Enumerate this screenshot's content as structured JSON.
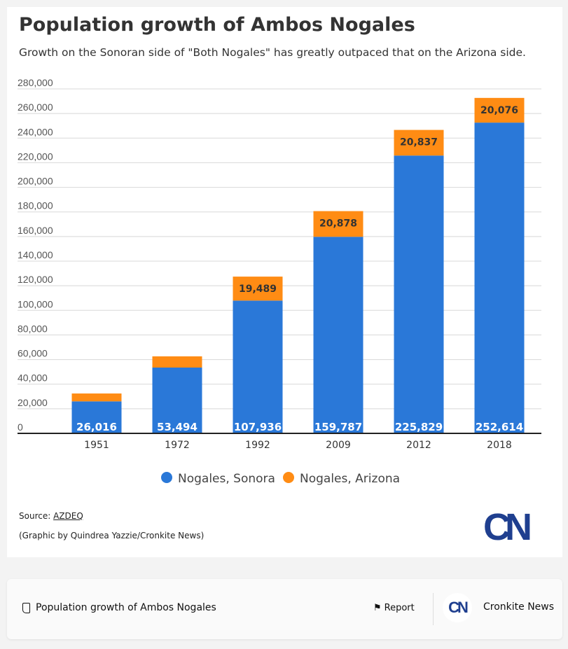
{
  "chart_data": {
    "type": "bar",
    "stacked": true,
    "title": "Population growth of Ambos Nogales",
    "subtitle": "Growth on the Sonoran side of \"Both Nogales\" has greatly outpaced that on the Arizona side.",
    "categories": [
      "1951",
      "1972",
      "1992",
      "2009",
      "2012",
      "2018"
    ],
    "series": [
      {
        "name": "Nogales, Sonora",
        "color": "#2a78d8",
        "values": [
          26016,
          53494,
          107936,
          159787,
          225829,
          252614
        ],
        "labels": [
          "26,016",
          "53,494",
          "107,936",
          "159,787",
          "225,829",
          "252,614"
        ]
      },
      {
        "name": "Nogales, Arizona",
        "color": "#ff8c14",
        "values": [
          6400,
          9100,
          19489,
          20878,
          20837,
          20076
        ],
        "labels": [
          "",
          "",
          "19,489",
          "20,878",
          "20,837",
          "20,076"
        ]
      }
    ],
    "ylim": [
      0,
      280000
    ],
    "yticks": [
      "0",
      "20,000",
      "40,000",
      "60,000",
      "80,000",
      "100,000",
      "120,000",
      "140,000",
      "160,000",
      "180,000",
      "200,000",
      "220,000",
      "240,000",
      "260,000",
      "280,000"
    ],
    "grid": true,
    "legend": "bottom"
  },
  "source_label": "Source: ",
  "source_link": "AZDEQ",
  "credit": "(Graphic by Quindrea Yazzie/Cronkite News)",
  "logo_text": "CN",
  "footer": {
    "title": "Population growth of Ambos Nogales",
    "report": "Report",
    "publisher": "Cronkite News",
    "badge": "CN"
  }
}
